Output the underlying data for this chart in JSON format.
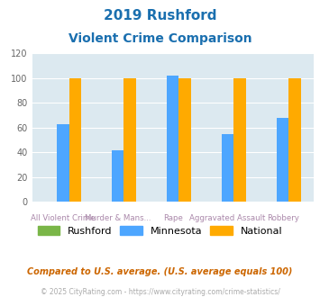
{
  "title_line1": "2019 Rushford",
  "title_line2": "Violent Crime Comparison",
  "categories": [
    "All Violent Crime",
    "Murder & Mans...",
    "Rape",
    "Aggravated Assault",
    "Robbery"
  ],
  "cat_line1": [
    "",
    "Murder & Mans...",
    "",
    "Aggravated Assault",
    ""
  ],
  "cat_line2": [
    "All Violent Crime",
    "",
    "Rape",
    "",
    "Robbery"
  ],
  "rushford": [
    0,
    0,
    0,
    0,
    0
  ],
  "minnesota": [
    63,
    42,
    102,
    55,
    68
  ],
  "national": [
    100,
    100,
    100,
    100,
    100
  ],
  "colors": {
    "rushford": "#7ab648",
    "minnesota": "#4da6ff",
    "national": "#ffaa00"
  },
  "ylim": [
    0,
    120
  ],
  "yticks": [
    0,
    20,
    40,
    60,
    80,
    100,
    120
  ],
  "title_color": "#1a6faf",
  "axis_bg": "#dce9f0",
  "footnote1": "Compared to U.S. average. (U.S. average equals 100)",
  "footnote2": "© 2025 CityRating.com - https://www.cityrating.com/crime-statistics/",
  "footnote1_color": "#cc6600",
  "footnote2_color": "#aaaaaa",
  "footnote2_link_color": "#4da6ff"
}
